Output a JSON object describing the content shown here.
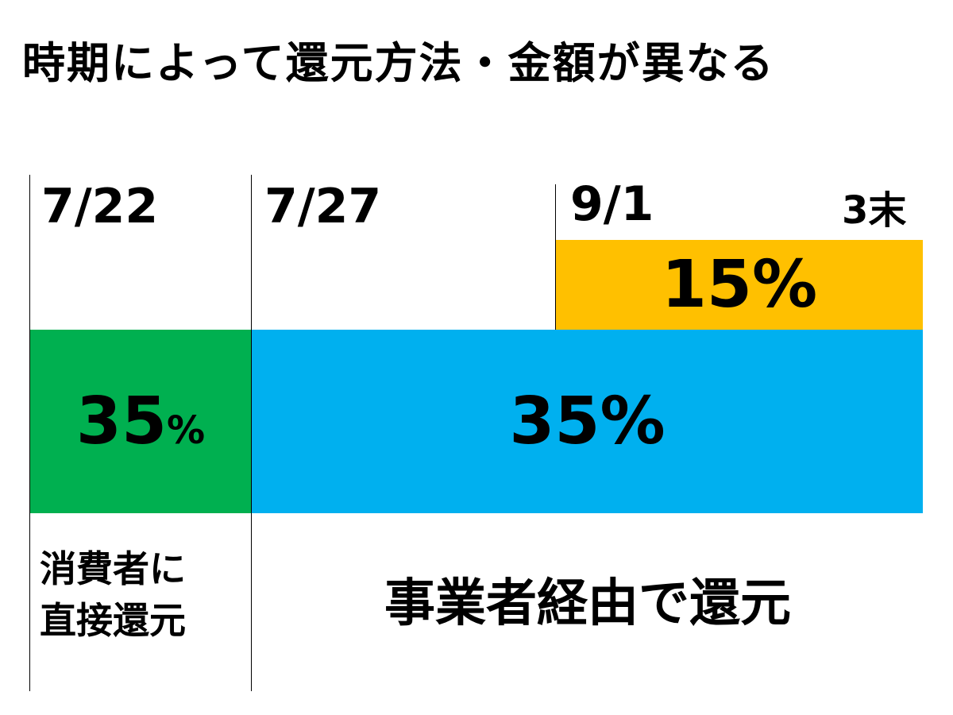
{
  "title": "時期によって還元方法・金額が異なる",
  "timeline": {
    "start": "7/22",
    "mid": "7/27",
    "late": "9/1",
    "end": "3末"
  },
  "blocks": {
    "direct": {
      "value": "35",
      "unit": "%",
      "color": "#00b050"
    },
    "business": {
      "value": "35",
      "unit": "%",
      "color": "#00b0ef"
    },
    "extra": {
      "value": "15",
      "unit": "%",
      "color": "#ffc000"
    }
  },
  "labels": {
    "direct_line1": "消費者に",
    "direct_line2": "直接還元",
    "business": "事業者経由で還元"
  }
}
